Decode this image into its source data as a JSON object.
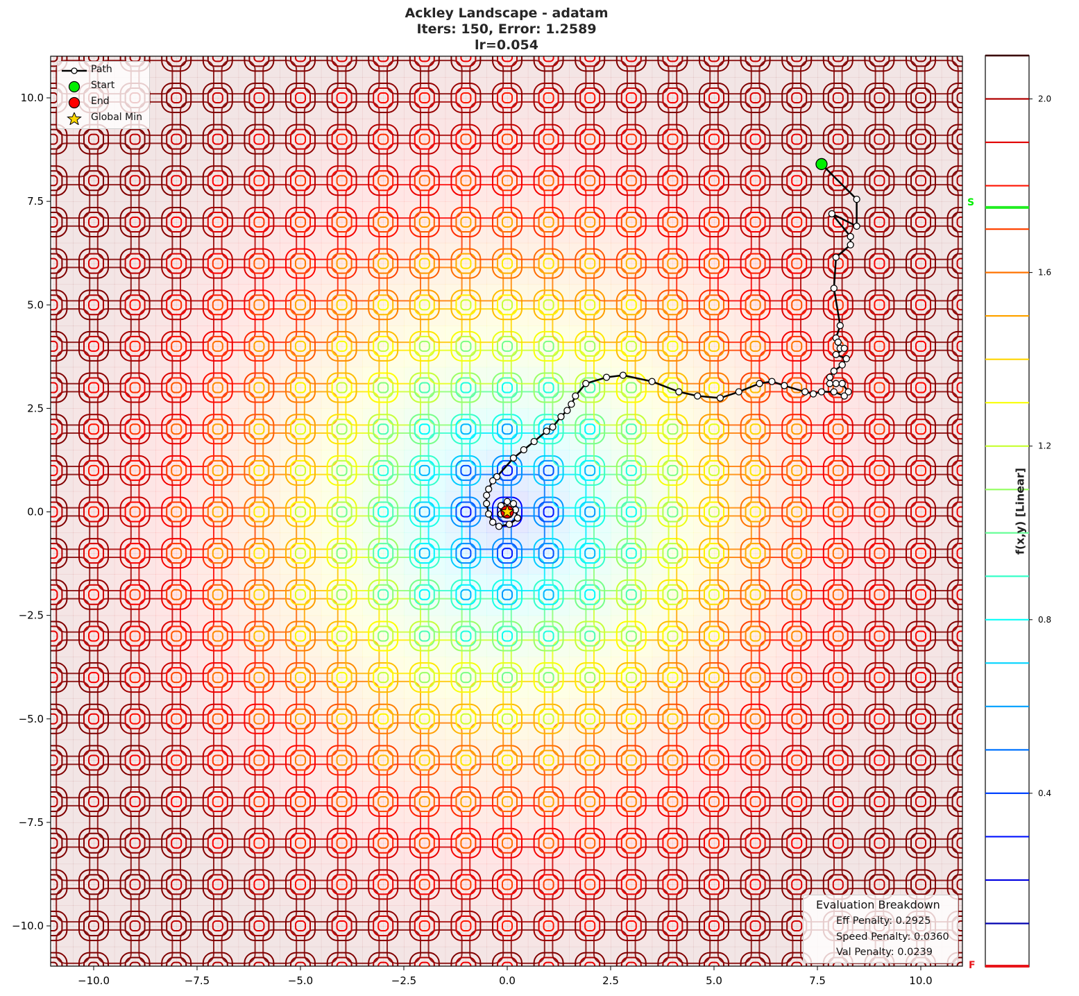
{
  "chart_data": {
    "type": "contour",
    "title": "Ackley Landscape - adatam",
    "subtitle_lines": [
      "Iters: 150, Error: 1.2589",
      "lr=0.054"
    ],
    "xlabel": "",
    "ylabel": "",
    "xlim": [
      -11,
      11
    ],
    "ylim": [
      -11,
      11
    ],
    "xticks": [
      -10.0,
      -7.5,
      -5.0,
      -2.5,
      0.0,
      2.5,
      5.0,
      7.5,
      10.0
    ],
    "xtick_labels": [
      "−10.0",
      "−7.5",
      "−5.0",
      "−2.5",
      "0.0",
      "2.5",
      "5.0",
      "7.5",
      "10.0"
    ],
    "yticks": [
      10.0,
      7.5,
      5.0,
      2.5,
      0.0,
      -2.5,
      -5.0,
      -7.5,
      -10.0
    ],
    "ytick_labels": [
      "10.0",
      "7.5",
      "5.0",
      "2.5",
      "0.0",
      "−2.5",
      "−5.0",
      "−7.5",
      "−10.0"
    ],
    "function": "Ackley",
    "global_min": [
      0.0,
      0.0
    ],
    "start": [
      7.6,
      8.4
    ],
    "end": [
      0.0,
      0.0
    ],
    "path": [
      [
        7.6,
        8.4
      ],
      [
        8.45,
        7.55
      ],
      [
        8.45,
        6.9
      ],
      [
        7.85,
        7.2
      ],
      [
        8.3,
        6.65
      ],
      [
        8.3,
        6.45
      ],
      [
        7.95,
        6.15
      ],
      [
        7.9,
        5.4
      ],
      [
        8.05,
        4.5
      ],
      [
        7.95,
        4.2
      ],
      [
        8.0,
        4.1
      ],
      [
        8.05,
        3.95
      ],
      [
        8.15,
        3.95
      ],
      [
        7.95,
        3.8
      ],
      [
        8.2,
        3.7
      ],
      [
        8.1,
        3.55
      ],
      [
        7.9,
        3.4
      ],
      [
        7.8,
        3.25
      ],
      [
        7.8,
        3.1
      ],
      [
        7.95,
        3.1
      ],
      [
        8.1,
        3.1
      ],
      [
        8.25,
        2.9
      ],
      [
        8.15,
        2.8
      ],
      [
        7.9,
        2.9
      ],
      [
        7.6,
        2.9
      ],
      [
        7.4,
        2.85
      ],
      [
        7.2,
        2.9
      ],
      [
        6.7,
        3.05
      ],
      [
        6.4,
        3.15
      ],
      [
        6.1,
        3.1
      ],
      [
        5.6,
        2.9
      ],
      [
        5.15,
        2.75
      ],
      [
        4.6,
        2.8
      ],
      [
        4.15,
        2.9
      ],
      [
        3.5,
        3.15
      ],
      [
        2.8,
        3.3
      ],
      [
        2.4,
        3.25
      ],
      [
        1.9,
        3.1
      ],
      [
        1.65,
        2.8
      ],
      [
        1.55,
        2.6
      ],
      [
        1.45,
        2.45
      ],
      [
        1.3,
        2.3
      ],
      [
        1.1,
        2.05
      ],
      [
        0.95,
        1.95
      ],
      [
        0.65,
        1.7
      ],
      [
        0.4,
        1.5
      ],
      [
        0.15,
        1.3
      ],
      [
        -0.25,
        0.85
      ],
      [
        -0.35,
        0.75
      ],
      [
        -0.45,
        0.55
      ],
      [
        -0.5,
        0.4
      ],
      [
        -0.5,
        0.2
      ],
      [
        -0.45,
        -0.05
      ],
      [
        -0.35,
        -0.25
      ],
      [
        -0.2,
        -0.35
      ],
      [
        0.05,
        -0.3
      ],
      [
        0.25,
        -0.15
      ],
      [
        0.2,
        0.05
      ],
      [
        0.15,
        0.2
      ],
      [
        0.0,
        0.25
      ],
      [
        -0.15,
        0.15
      ],
      [
        -0.15,
        -0.05
      ],
      [
        0.0,
        0.0
      ]
    ],
    "colorbar": {
      "label": "f(x,y) [Linear]",
      "ticks": [
        2.0,
        1.6,
        1.2,
        0.8,
        0.4
      ],
      "tick_labels": [
        "2.0",
        "1.6",
        "1.2",
        "0.8",
        "0.4"
      ],
      "levels": [
        0.1,
        0.2,
        0.3,
        0.4,
        0.5,
        0.6,
        0.7,
        0.8,
        0.9,
        1.0,
        1.1,
        1.2,
        1.3,
        1.4,
        1.5,
        1.6,
        1.7,
        1.8,
        1.9,
        2.0,
        2.1
      ],
      "start_marker": {
        "label": "S",
        "value": 1.75,
        "color": "#22ee22"
      },
      "final_marker": {
        "label": "F",
        "value": 0.0,
        "color": "#e8151a"
      },
      "range": [
        0.0,
        2.1
      ],
      "colormap": "jet"
    },
    "legend": {
      "position": "upper left",
      "entries": [
        "Path",
        "Start",
        "End",
        "Global Min"
      ]
    },
    "annotation": {
      "title": "Evaluation Breakdown",
      "lines": [
        "Eff Penalty: 0.2925",
        "Speed Penalty: 0.0360",
        "Val Penalty: 0.0239"
      ]
    },
    "grid": false
  },
  "header": {
    "title": "Ackley Landscape - adatam",
    "line2": "Iters: 150, Error: 1.2589",
    "line3": "lr=0.054"
  },
  "legend": {
    "path": "Path",
    "start": "Start",
    "end": "End",
    "global_min": "Global Min"
  },
  "eval": {
    "title": "Evaluation Breakdown",
    "eff": "Eff Penalty: 0.2925",
    "speed": "Speed Penalty: 0.0360",
    "val": "Val Penalty: 0.0239"
  },
  "colorbar": {
    "label": "f(x,y) [Linear]",
    "s_marker": "S",
    "f_marker": "F"
  },
  "colors": {
    "start": "#00ee00",
    "end": "#ff0000",
    "star": "#ffd700",
    "path": "#000000"
  }
}
